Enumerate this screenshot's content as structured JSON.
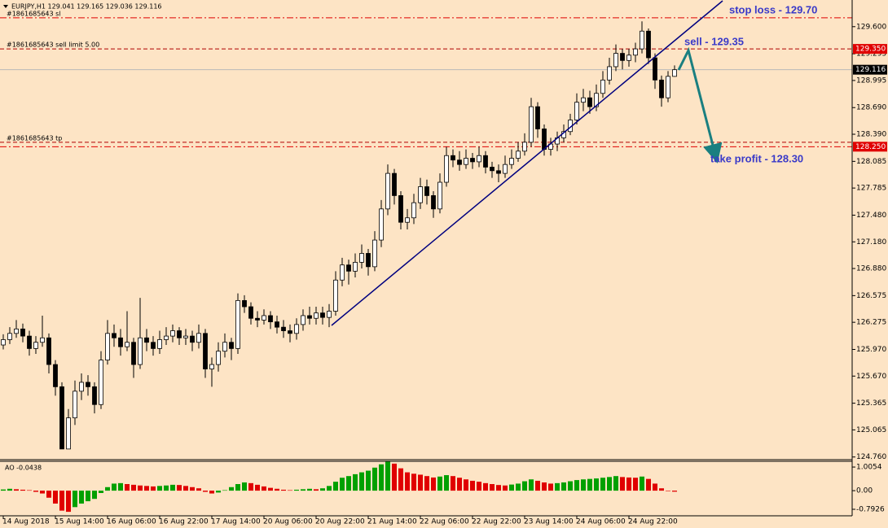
{
  "chart_data": {
    "type": "candlestick",
    "title": "EURJPY,H1  129.041 129.165 129.036 129.116",
    "categories": [
      "14 Aug 2018",
      null,
      null,
      null,
      null,
      null,
      null,
      null,
      "15 Aug 14:00",
      null,
      null,
      null,
      null,
      null,
      null,
      null,
      "16 Aug 06:00",
      null,
      null,
      null,
      null,
      null,
      null,
      null,
      "16 Aug 22:00",
      null,
      null,
      null,
      null,
      null,
      null,
      null,
      "17 Aug 14:00",
      null,
      null,
      null,
      null,
      null,
      null,
      null,
      "20 Aug 06:00",
      null,
      null,
      null,
      null,
      null,
      null,
      null,
      "20 Aug 22:00",
      null,
      null,
      null,
      null,
      null,
      null,
      null,
      "21 Aug 14:00",
      null,
      null,
      null,
      null,
      null,
      null,
      null,
      "22 Aug 06:00",
      null,
      null,
      null,
      null,
      null,
      null,
      null,
      "22 Aug 22:00",
      null,
      null,
      null,
      null,
      null,
      null,
      null,
      "23 Aug 14:00",
      null,
      null,
      null,
      null,
      null,
      null,
      null,
      "24 Aug 06:00",
      null,
      null,
      null,
      null,
      null,
      null,
      null,
      "24 Aug 22:00",
      null,
      null,
      null,
      null,
      null,
      null,
      null
    ],
    "open": [
      126.02,
      126.08,
      126.15,
      126.2,
      126.12,
      125.98,
      126.05,
      126.1,
      125.8,
      125.55,
      124.85,
      125.2,
      125.5,
      125.6,
      125.55,
      125.35,
      125.85,
      126.15,
      126.1,
      126.0,
      126.05,
      125.8,
      126.1,
      126.05,
      125.98,
      126.08,
      126.12,
      126.18,
      126.1,
      126.12,
      126.05,
      126.15,
      125.75,
      125.8,
      125.95,
      126.05,
      125.98,
      126.52,
      126.45,
      126.32,
      126.3,
      126.35,
      126.28,
      126.22,
      126.18,
      126.15,
      126.25,
      126.35,
      126.32,
      126.38,
      126.33,
      126.4,
      126.75,
      126.92,
      126.85,
      126.95,
      127.05,
      126.9,
      127.2,
      127.55,
      127.95,
      127.7,
      127.4,
      127.45,
      127.62,
      127.8,
      127.7,
      127.55,
      127.85,
      128.15,
      128.1,
      128.05,
      128.12,
      128.08,
      128.15,
      128.02,
      127.98,
      127.95,
      128.05,
      128.12,
      128.2,
      128.3,
      128.7,
      128.45,
      128.22,
      128.28,
      128.35,
      128.42,
      128.55,
      128.75,
      128.8,
      128.7,
      128.85,
      129.0,
      129.15,
      129.3,
      129.22,
      129.28,
      129.35,
      129.55,
      129.25,
      129.0,
      128.8,
      129.041
    ],
    "high": [
      126.14,
      126.22,
      126.3,
      126.26,
      126.18,
      126.12,
      126.35,
      126.15,
      125.85,
      125.6,
      125.3,
      125.62,
      125.7,
      125.68,
      125.6,
      125.95,
      126.3,
      126.25,
      126.2,
      126.4,
      126.1,
      126.55,
      126.2,
      126.12,
      126.18,
      126.22,
      126.25,
      126.22,
      126.2,
      126.18,
      126.25,
      126.2,
      125.88,
      126.05,
      126.15,
      126.1,
      126.6,
      126.58,
      126.5,
      126.4,
      126.42,
      126.4,
      126.35,
      126.3,
      126.25,
      126.32,
      126.42,
      126.45,
      126.45,
      126.45,
      126.48,
      126.85,
      127.0,
      126.98,
      127.05,
      127.15,
      127.1,
      127.3,
      127.65,
      128.05,
      128.0,
      127.75,
      127.55,
      127.72,
      127.9,
      127.88,
      127.75,
      127.95,
      128.25,
      128.22,
      128.2,
      128.22,
      128.18,
      128.25,
      128.2,
      128.08,
      128.05,
      128.15,
      128.22,
      128.3,
      128.4,
      128.8,
      128.75,
      128.5,
      128.35,
      128.42,
      128.5,
      128.62,
      128.85,
      128.9,
      128.88,
      128.95,
      129.1,
      129.25,
      129.4,
      129.35,
      129.35,
      129.42,
      129.66,
      129.58,
      129.3,
      129.05,
      129.1,
      129.165
    ],
    "low": [
      125.97,
      126.03,
      126.1,
      126.05,
      125.9,
      125.92,
      126.0,
      125.7,
      125.45,
      124.88,
      124.88,
      125.12,
      125.4,
      125.45,
      125.25,
      125.3,
      125.8,
      126.0,
      125.9,
      125.95,
      125.65,
      125.75,
      125.95,
      125.9,
      125.92,
      126.02,
      126.05,
      126.02,
      126.02,
      125.95,
      125.98,
      125.65,
      125.55,
      125.72,
      125.88,
      125.85,
      125.92,
      126.38,
      126.25,
      126.22,
      126.25,
      126.2,
      126.15,
      126.1,
      126.05,
      126.08,
      126.18,
      126.25,
      126.25,
      126.25,
      126.22,
      126.35,
      126.68,
      126.7,
      126.78,
      126.88,
      126.8,
      126.85,
      127.12,
      127.48,
      127.6,
      127.32,
      127.32,
      127.38,
      127.55,
      127.6,
      127.45,
      127.5,
      127.8,
      128.02,
      127.98,
      128.0,
      128.0,
      128.02,
      127.95,
      127.9,
      127.85,
      127.9,
      128.0,
      128.08,
      128.15,
      128.25,
      128.35,
      128.15,
      128.15,
      128.2,
      128.3,
      128.38,
      128.5,
      128.65,
      128.62,
      128.65,
      128.8,
      128.95,
      129.1,
      129.12,
      129.15,
      129.2,
      129.3,
      129.18,
      128.9,
      128.7,
      128.75,
      129.036
    ],
    "close": [
      126.08,
      126.15,
      126.2,
      126.12,
      125.98,
      126.05,
      126.1,
      125.8,
      125.55,
      124.85,
      125.2,
      125.5,
      125.6,
      125.55,
      125.35,
      125.85,
      126.15,
      126.1,
      126.0,
      126.05,
      125.8,
      126.1,
      126.05,
      125.98,
      126.08,
      126.12,
      126.18,
      126.1,
      126.12,
      126.05,
      126.15,
      125.75,
      125.8,
      125.95,
      126.05,
      125.98,
      126.52,
      126.45,
      126.32,
      126.3,
      126.35,
      126.28,
      126.22,
      126.18,
      126.15,
      126.25,
      126.35,
      126.32,
      126.38,
      126.33,
      126.4,
      126.75,
      126.92,
      126.85,
      126.95,
      127.05,
      126.9,
      127.2,
      127.55,
      127.95,
      127.7,
      127.4,
      127.45,
      127.62,
      127.8,
      127.7,
      127.55,
      127.85,
      128.15,
      128.1,
      128.05,
      128.12,
      128.08,
      128.15,
      128.02,
      127.98,
      127.95,
      128.05,
      128.12,
      128.2,
      128.3,
      128.7,
      128.45,
      128.22,
      128.28,
      128.35,
      128.42,
      128.55,
      128.75,
      128.8,
      128.7,
      128.85,
      129.0,
      129.15,
      129.3,
      129.22,
      129.28,
      129.35,
      129.55,
      129.25,
      129.0,
      128.8,
      129.041,
      129.116
    ],
    "up_color": "#ffffff",
    "down_color": "#000000",
    "wick_color": "#000000",
    "ylim": [
      124.73,
      129.9
    ],
    "yticks": [
      {
        "value": 129.6,
        "label": "129.600"
      },
      {
        "value": 129.295,
        "label": "129.295"
      },
      {
        "value": 128.995,
        "label": "128.995"
      },
      {
        "value": 128.69,
        "label": "128.690"
      },
      {
        "value": 128.39,
        "label": "128.390"
      },
      {
        "value": 128.085,
        "label": "128.085"
      },
      {
        "value": 127.785,
        "label": "127.785"
      },
      {
        "value": 127.48,
        "label": "127.480"
      },
      {
        "value": 127.18,
        "label": "127.180"
      },
      {
        "value": 126.88,
        "label": "126.880"
      },
      {
        "value": 126.575,
        "label": "126.575"
      },
      {
        "value": 126.275,
        "label": "126.275"
      },
      {
        "value": 125.97,
        "label": "125.970"
      },
      {
        "value": 125.67,
        "label": "125.670"
      },
      {
        "value": 125.365,
        "label": "125.365"
      },
      {
        "value": 125.065,
        "label": "125.065"
      },
      {
        "value": 124.76,
        "label": "124.760"
      }
    ],
    "levels": [
      {
        "name": "#1861685643 sl",
        "value": 129.7,
        "color": "#e00000",
        "style": "dashdot"
      },
      {
        "name": "#1861685643 sell limit 5.00",
        "value": 129.35,
        "color": "#b00000",
        "style": "dashed",
        "tag": "129.350",
        "tag_color": "#e00000"
      },
      {
        "value": 129.116,
        "color": "#b8b8b8",
        "style": "solid",
        "tag": "129.116",
        "tag_color": "#000000"
      },
      {
        "name": "#1861685643 tp",
        "value": 128.3,
        "color": "#b00000",
        "style": "dashed"
      },
      {
        "value": 128.25,
        "color": "#e00000",
        "style": "dashdot",
        "tag": "128.250",
        "tag_color": "#e00000"
      }
    ],
    "annotations": [
      "stop loss - 129.70",
      "sell - 129.35",
      "take profit - 128.30"
    ],
    "indicator": {
      "type": "histogram",
      "label": "AO -0.0438",
      "values": [
        0.05,
        0.08,
        0.06,
        0.04,
        0.02,
        -0.05,
        -0.12,
        -0.3,
        -0.55,
        -0.85,
        -0.9,
        -0.7,
        -0.55,
        -0.45,
        -0.35,
        -0.1,
        0.15,
        0.3,
        0.32,
        0.28,
        0.25,
        0.22,
        0.2,
        0.18,
        0.2,
        0.22,
        0.25,
        0.24,
        0.2,
        0.15,
        0.1,
        -0.05,
        -0.12,
        -0.08,
        0.02,
        0.15,
        0.28,
        0.35,
        0.32,
        0.25,
        0.18,
        0.12,
        0.08,
        0.04,
        0.02,
        0.04,
        0.06,
        0.08,
        0.06,
        0.1,
        0.2,
        0.38,
        0.55,
        0.62,
        0.7,
        0.78,
        0.85,
        0.98,
        1.12,
        1.25,
        1.15,
        0.95,
        0.78,
        0.72,
        0.68,
        0.62,
        0.56,
        0.6,
        0.66,
        0.62,
        0.55,
        0.48,
        0.42,
        0.38,
        0.32,
        0.28,
        0.24,
        0.22,
        0.26,
        0.3,
        0.4,
        0.48,
        0.42,
        0.35,
        0.3,
        0.32,
        0.35,
        0.4,
        0.45,
        0.48,
        0.5,
        0.52,
        0.55,
        0.58,
        0.62,
        0.58,
        0.56,
        0.55,
        0.6,
        0.5,
        0.3,
        0.1,
        -0.02,
        -0.0438
      ],
      "up_color": "#00a000",
      "down_color": "#e00000",
      "ylim": [
        -1.07,
        1.25
      ],
      "yticks": [
        1.0054,
        {
          "value": 0,
          "label": "0.00"
        },
        -0.7926
      ]
    }
  }
}
